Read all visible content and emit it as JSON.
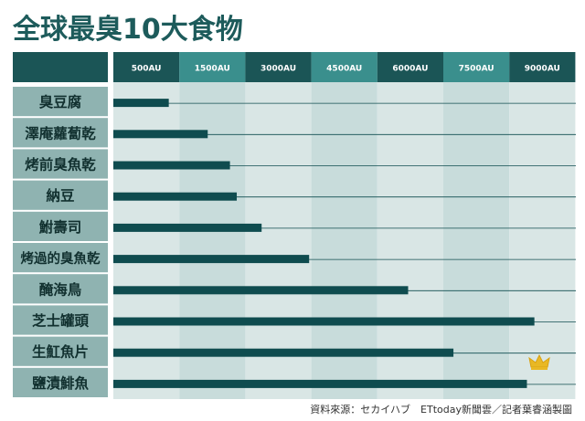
{
  "chart_data": {
    "type": "bar",
    "orientation": "horizontal",
    "title": "全球最臭10大食物",
    "categories": [
      "臭豆腐",
      "澤庵蘿蔔乾",
      "烤前臭魚乾",
      "納豆",
      "鮒壽司",
      "烤過的臭魚乾",
      "醃海鳥",
      "芝士罐頭",
      "生魟魚片",
      "鹽漬鯡魚"
    ],
    "values": [
      420,
      930,
      1267,
      1370,
      1870,
      2950,
      5200,
      8070,
      6230,
      7900
    ],
    "x_ticks": [
      "500AU",
      "1500AU",
      "3000AU",
      "4500AU",
      "6000AU",
      "7500AU",
      "9000AU"
    ],
    "annotation": "crown-icon on top bar",
    "source": "資料來源：セカイハブ　ETtoday新聞雲／記者葉睿涵製圖"
  },
  "colors": {
    "title": "#1d5b5b",
    "bar": "#0f4c4f",
    "header_dark": "#1b5556",
    "header_teal": "#3a8f8d",
    "category_cell": "#8fb3b1",
    "band_light": "#d9e6e5",
    "band_mid": "#c8dcdb",
    "crown": "#e9b824"
  }
}
